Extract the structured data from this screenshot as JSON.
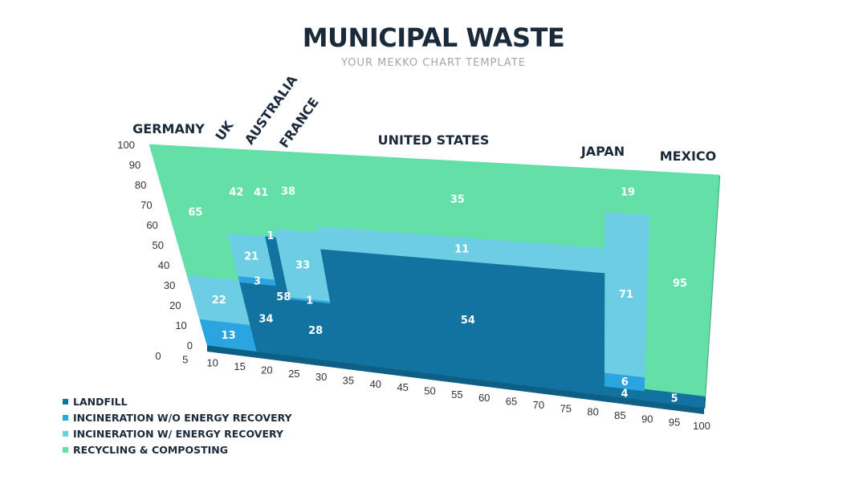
{
  "title": "MUNICIPAL WASTE",
  "subtitle": "YOUR MEKKO CHART TEMPLATE",
  "chart_data": {
    "type": "mekko",
    "x_ticks": [
      0,
      5,
      10,
      15,
      20,
      25,
      30,
      35,
      40,
      45,
      50,
      55,
      60,
      65,
      70,
      75,
      80,
      85,
      90,
      95,
      100
    ],
    "y_ticks": [
      0,
      10,
      20,
      30,
      40,
      50,
      60,
      70,
      80,
      90,
      100
    ],
    "xlim": [
      0,
      100
    ],
    "ylim": [
      0,
      100
    ],
    "series_names": [
      "LANDFILL",
      "INCINERATION W/O ENERGY RECOVERY",
      "INCINERATION W/ ENERGY RECOVERY",
      "RECYCLING & COMPOSTING"
    ],
    "colors": [
      "#1272a0",
      "#2ba5e0",
      "#6dcde2",
      "#63dfa7"
    ],
    "countries": [
      {
        "name": "GERMANY",
        "x0": 0,
        "x1": 10,
        "values": [
          0,
          13,
          22,
          65
        ],
        "labels": [
          "",
          "13",
          "22",
          "65"
        ]
      },
      {
        "name": "UK",
        "x0": 10,
        "x1": 17,
        "values": [
          34,
          3,
          21,
          42
        ],
        "labels": [
          "34",
          "3",
          "21",
          "42"
        ]
      },
      {
        "name": "AUSTRALIA",
        "x0": 17,
        "x1": 19,
        "values": [
          58,
          0,
          1,
          41
        ],
        "labels": [
          "58",
          "",
          "1",
          "41"
        ]
      },
      {
        "name": "FRANCE",
        "x0": 19,
        "x1": 27,
        "values": [
          28,
          1,
          33,
          38
        ],
        "labels": [
          "28",
          "1",
          "33",
          "38"
        ]
      },
      {
        "name": "UNITED STATES",
        "x0": 27,
        "x1": 80,
        "values": [
          54,
          0,
          11,
          35
        ],
        "labels": [
          "54",
          "",
          "11",
          "35"
        ]
      },
      {
        "name": "JAPAN",
        "x0": 80,
        "x1": 88,
        "values": [
          4,
          6,
          71,
          19
        ],
        "labels": [
          "4",
          "6",
          "71",
          "19"
        ]
      },
      {
        "name": "MEXICO",
        "x0": 88,
        "x1": 100,
        "values": [
          5,
          0,
          0,
          95
        ],
        "labels": [
          "5",
          "",
          "",
          "95"
        ]
      }
    ],
    "legend": "bottom-left"
  }
}
